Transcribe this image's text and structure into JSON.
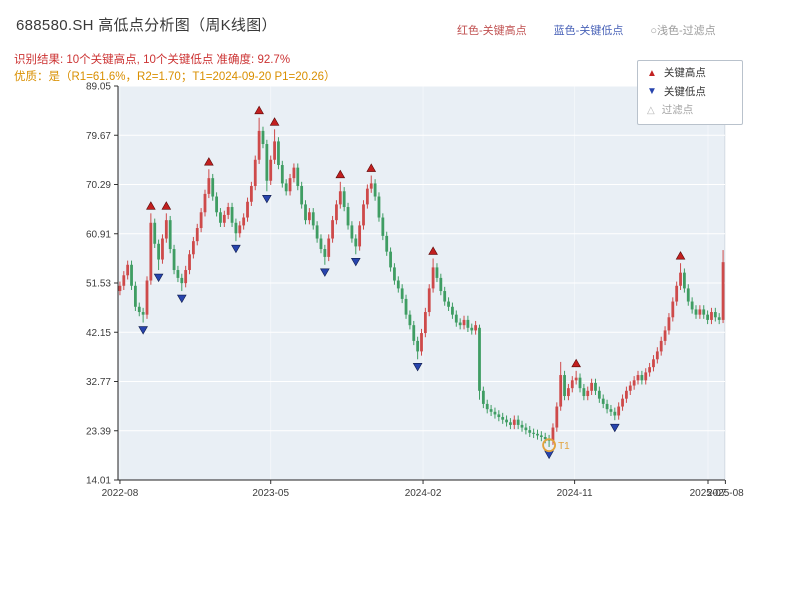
{
  "header": {
    "title": "688580.SH 高低点分析图（周K线图）",
    "legend_labels": [
      {
        "text": "红色-关键高点",
        "color": "#c05050"
      },
      {
        "text": "蓝色-关键低点",
        "color": "#4a63b8"
      },
      {
        "text": "○浅色-过滤点",
        "color": "#9a9a9a"
      }
    ],
    "result_text": "识别结果: 10个关键高点, 10个关键低点  准确度: 92.7%",
    "result_color": "#cc3333",
    "quality_text": "优质：是（R1=61.6%，R2=1.70；T1=2024-09-20 P1=20.26）",
    "quality_color": "#d98f00"
  },
  "chart_data": {
    "type": "candlestick",
    "title": "688580.SH 高低点分析图（周K线图）",
    "interval": "weekly",
    "ylim": [
      14.01,
      89.05
    ],
    "yticks": [
      89.05,
      79.67,
      70.29,
      60.91,
      51.53,
      42.15,
      32.77,
      23.39,
      14.01
    ],
    "xticks": [
      {
        "label": "2022-08",
        "week": 0
      },
      {
        "label": "2023-05",
        "week": 39
      },
      {
        "label": "2024-02",
        "week": 78.4
      },
      {
        "label": "2024-11",
        "week": 117.6
      },
      {
        "label": "2025-07",
        "week": 152.1
      },
      {
        "label": "2025-08",
        "week": 156.6
      }
    ],
    "legend": {
      "items": [
        {
          "label": "关键高点",
          "marker": "triangle-up-icon",
          "color": "#c22222"
        },
        {
          "label": "关键低点",
          "marker": "triangle-down-icon",
          "color": "#2744ad"
        },
        {
          "label": "过滤点",
          "marker": "triangle-hollow-icon",
          "color": "#b5b5b5"
        }
      ]
    },
    "colors": {
      "up": "#ce4a4a",
      "down": "#3f9d63",
      "panel": "#e9eff5",
      "grid": "#ffffff",
      "key_high": "#c21f1f",
      "key_low": "#2744ad",
      "annotation": "#e2a23c",
      "axis_text": "#3c3c3c"
    },
    "key_high_indices": [
      8,
      12,
      23,
      36,
      40,
      57,
      65,
      81,
      118,
      145
    ],
    "key_low_indices": [
      6,
      10,
      16,
      30,
      38,
      53,
      61,
      77,
      111,
      128
    ],
    "annotation_t1": {
      "index": 111,
      "label": "T1",
      "price": 20.26
    },
    "candles": [
      [
        50.0,
        51.8,
        49.2,
        51.0
      ],
      [
        51.0,
        53.8,
        50.2,
        53.0
      ],
      [
        53.0,
        55.8,
        52.2,
        55.0
      ],
      [
        55.0,
        55.8,
        50.2,
        51.0
      ],
      [
        51.0,
        51.8,
        46.2,
        47.0
      ],
      [
        47.0,
        47.8,
        45.2,
        46.0
      ],
      [
        46.0,
        46.8,
        44.0,
        45.5
      ],
      [
        45.5,
        52.8,
        44.7,
        52.0
      ],
      [
        52.0,
        64.8,
        51.2,
        63.0
      ],
      [
        63.0,
        63.8,
        58.2,
        59.0
      ],
      [
        59.0,
        59.8,
        54.0,
        56.0
      ],
      [
        56.0,
        60.8,
        55.2,
        60.0
      ],
      [
        60.0,
        64.8,
        59.2,
        63.5
      ],
      [
        63.5,
        64.3,
        57.2,
        58.0
      ],
      [
        58.0,
        58.8,
        53.2,
        54.0
      ],
      [
        54.0,
        54.8,
        51.7,
        52.5
      ],
      [
        52.5,
        53.3,
        50.0,
        51.5
      ],
      [
        51.5,
        54.8,
        50.7,
        54.0
      ],
      [
        54.0,
        57.8,
        53.2,
        57.0
      ],
      [
        57.0,
        60.3,
        56.2,
        59.5
      ],
      [
        59.5,
        62.8,
        58.7,
        62.0
      ],
      [
        62.0,
        65.8,
        61.2,
        65.0
      ],
      [
        65.0,
        69.3,
        64.2,
        68.5
      ],
      [
        68.5,
        73.2,
        67.7,
        71.5
      ],
      [
        71.5,
        72.3,
        67.2,
        68.0
      ],
      [
        68.0,
        68.8,
        64.2,
        65.0
      ],
      [
        65.0,
        65.8,
        62.2,
        63.0
      ],
      [
        63.0,
        65.3,
        62.2,
        64.5
      ],
      [
        64.5,
        66.8,
        63.7,
        66.0
      ],
      [
        66.0,
        66.8,
        62.2,
        63.0
      ],
      [
        63.0,
        63.8,
        59.5,
        61.0
      ],
      [
        61.0,
        63.3,
        60.2,
        62.5
      ],
      [
        62.5,
        64.8,
        61.7,
        64.0
      ],
      [
        64.0,
        67.8,
        63.2,
        67.0
      ],
      [
        67.0,
        70.8,
        66.2,
        70.0
      ],
      [
        70.0,
        75.8,
        69.2,
        75.0
      ],
      [
        75.0,
        83.0,
        74.2,
        80.5
      ],
      [
        80.5,
        81.3,
        77.2,
        78.0
      ],
      [
        78.0,
        78.8,
        69.0,
        71.0
      ],
      [
        71.0,
        75.8,
        70.2,
        75.0
      ],
      [
        75.0,
        80.8,
        74.2,
        78.5
      ],
      [
        78.5,
        79.3,
        73.2,
        74.0
      ],
      [
        74.0,
        74.8,
        69.7,
        70.5
      ],
      [
        70.5,
        71.3,
        68.2,
        69.0
      ],
      [
        69.0,
        72.3,
        68.2,
        71.5
      ],
      [
        71.5,
        74.3,
        70.7,
        73.5
      ],
      [
        73.5,
        74.3,
        69.2,
        70.0
      ],
      [
        70.0,
        70.8,
        65.7,
        66.5
      ],
      [
        66.5,
        67.3,
        62.7,
        63.5
      ],
      [
        63.5,
        65.8,
        62.7,
        65.0
      ],
      [
        65.0,
        65.8,
        61.7,
        62.5
      ],
      [
        62.5,
        63.3,
        59.2,
        60.0
      ],
      [
        60.0,
        60.8,
        57.2,
        58.0
      ],
      [
        58.0,
        58.8,
        55.0,
        56.5
      ],
      [
        56.5,
        60.8,
        55.7,
        60.0
      ],
      [
        60.0,
        64.3,
        59.2,
        63.5
      ],
      [
        63.5,
        67.3,
        62.7,
        66.5
      ],
      [
        66.5,
        70.8,
        65.7,
        69.0
      ],
      [
        69.0,
        69.8,
        65.2,
        66.0
      ],
      [
        66.0,
        66.8,
        61.7,
        62.5
      ],
      [
        62.5,
        63.3,
        59.2,
        60.0
      ],
      [
        60.0,
        60.8,
        57.0,
        58.5
      ],
      [
        58.5,
        63.3,
        57.7,
        62.5
      ],
      [
        62.5,
        67.3,
        61.7,
        66.5
      ],
      [
        66.5,
        70.3,
        65.7,
        69.5
      ],
      [
        69.5,
        72.0,
        68.7,
        70.5
      ],
      [
        70.5,
        71.3,
        67.2,
        68.0
      ],
      [
        68.0,
        68.8,
        63.2,
        64.0
      ],
      [
        64.0,
        64.8,
        59.7,
        60.5
      ],
      [
        60.5,
        61.3,
        56.7,
        57.5
      ],
      [
        57.5,
        58.3,
        53.7,
        54.5
      ],
      [
        54.5,
        55.3,
        51.2,
        52.0
      ],
      [
        52.0,
        52.8,
        49.7,
        50.5
      ],
      [
        50.5,
        51.3,
        47.7,
        48.5
      ],
      [
        48.5,
        49.3,
        44.7,
        45.5
      ],
      [
        45.5,
        46.3,
        42.7,
        43.5
      ],
      [
        43.5,
        44.3,
        39.7,
        40.5
      ],
      [
        40.5,
        41.3,
        37.0,
        38.5
      ],
      [
        38.5,
        42.8,
        37.7,
        42.0
      ],
      [
        42.0,
        46.8,
        41.2,
        46.0
      ],
      [
        46.0,
        51.3,
        45.2,
        50.5
      ],
      [
        50.5,
        56.2,
        49.7,
        54.5
      ],
      [
        54.5,
        55.3,
        51.7,
        52.5
      ],
      [
        52.5,
        53.3,
        49.2,
        50.0
      ],
      [
        50.0,
        50.8,
        47.2,
        48.0
      ],
      [
        48.0,
        48.8,
        46.2,
        47.0
      ],
      [
        47.0,
        47.8,
        44.7,
        45.5
      ],
      [
        45.5,
        46.3,
        43.2,
        44.0
      ],
      [
        44.0,
        44.8,
        42.7,
        43.5
      ],
      [
        43.5,
        45.3,
        42.7,
        44.5
      ],
      [
        44.5,
        45.3,
        42.2,
        43.0
      ],
      [
        43.0,
        43.8,
        41.7,
        42.5
      ],
      [
        42.5,
        44.3,
        41.7,
        43.5
      ],
      [
        43.0,
        43.6,
        29.3,
        31.0
      ],
      [
        31.0,
        31.8,
        27.7,
        28.5
      ],
      [
        28.5,
        29.3,
        26.7,
        27.5
      ],
      [
        27.5,
        28.3,
        26.2,
        27.0
      ],
      [
        27.0,
        27.8,
        25.7,
        26.5
      ],
      [
        26.5,
        27.3,
        25.2,
        26.0
      ],
      [
        26.0,
        26.8,
        24.7,
        25.5
      ],
      [
        25.5,
        26.3,
        24.2,
        25.0
      ],
      [
        25.0,
        25.8,
        23.7,
        24.5
      ],
      [
        24.5,
        26.3,
        23.7,
        25.5
      ],
      [
        25.5,
        26.3,
        23.7,
        24.5
      ],
      [
        24.5,
        25.3,
        23.2,
        24.0
      ],
      [
        24.0,
        24.8,
        22.7,
        23.5
      ],
      [
        23.5,
        24.3,
        22.2,
        23.0
      ],
      [
        23.0,
        23.8,
        22.0,
        22.8
      ],
      [
        22.8,
        23.6,
        21.7,
        22.5
      ],
      [
        22.5,
        23.3,
        21.4,
        22.2
      ],
      [
        22.2,
        23.0,
        21.0,
        21.8
      ],
      [
        21.8,
        22.6,
        20.3,
        21.5
      ],
      [
        21.5,
        24.8,
        20.7,
        24.0
      ],
      [
        24.0,
        28.8,
        23.2,
        28.0
      ],
      [
        28.0,
        36.5,
        27.2,
        34.0
      ],
      [
        34.0,
        34.8,
        29.2,
        30.0
      ],
      [
        30.0,
        32.3,
        29.2,
        31.5
      ],
      [
        31.5,
        33.8,
        30.7,
        33.0
      ],
      [
        33.0,
        34.8,
        32.2,
        33.5
      ],
      [
        33.5,
        34.3,
        30.7,
        31.5
      ],
      [
        31.5,
        32.3,
        29.2,
        30.0
      ],
      [
        30.0,
        31.8,
        29.2,
        31.0
      ],
      [
        31.0,
        33.3,
        30.2,
        32.5
      ],
      [
        32.5,
        33.3,
        30.2,
        31.0
      ],
      [
        31.0,
        31.8,
        28.7,
        29.5
      ],
      [
        29.5,
        30.3,
        27.7,
        28.5
      ],
      [
        28.5,
        29.3,
        26.7,
        27.5
      ],
      [
        27.5,
        28.3,
        26.2,
        27.0
      ],
      [
        27.0,
        27.8,
        25.4,
        26.3
      ],
      [
        26.3,
        28.8,
        25.5,
        28.0
      ],
      [
        28.0,
        30.3,
        27.2,
        29.5
      ],
      [
        29.5,
        31.8,
        28.7,
        31.0
      ],
      [
        31.0,
        32.8,
        30.2,
        32.0
      ],
      [
        32.0,
        33.8,
        31.2,
        33.0
      ],
      [
        33.0,
        34.8,
        32.2,
        34.0
      ],
      [
        34.0,
        34.8,
        32.2,
        33.0
      ],
      [
        33.0,
        35.3,
        32.2,
        34.5
      ],
      [
        34.5,
        36.3,
        33.7,
        35.5
      ],
      [
        35.5,
        37.8,
        34.7,
        37.0
      ],
      [
        37.0,
        39.3,
        36.2,
        38.5
      ],
      [
        38.5,
        41.3,
        37.7,
        40.5
      ],
      [
        40.5,
        43.3,
        39.7,
        42.5
      ],
      [
        42.5,
        45.8,
        41.7,
        45.0
      ],
      [
        45.0,
        48.8,
        44.2,
        48.0
      ],
      [
        48.0,
        51.8,
        47.2,
        51.0
      ],
      [
        51.0,
        55.3,
        50.2,
        53.5
      ],
      [
        53.5,
        54.3,
        49.7,
        50.5
      ],
      [
        50.5,
        51.3,
        47.2,
        48.0
      ],
      [
        48.0,
        48.8,
        45.7,
        46.5
      ],
      [
        46.5,
        47.3,
        44.7,
        45.5
      ],
      [
        45.5,
        47.3,
        44.7,
        46.5
      ],
      [
        46.5,
        47.3,
        44.7,
        45.5
      ],
      [
        45.5,
        46.3,
        43.7,
        44.5
      ],
      [
        44.5,
        46.8,
        43.7,
        46.0
      ],
      [
        46.0,
        46.8,
        44.2,
        45.0
      ],
      [
        45.0,
        45.8,
        43.7,
        44.5
      ],
      [
        44.5,
        57.8,
        43.9,
        55.5
      ]
    ]
  }
}
